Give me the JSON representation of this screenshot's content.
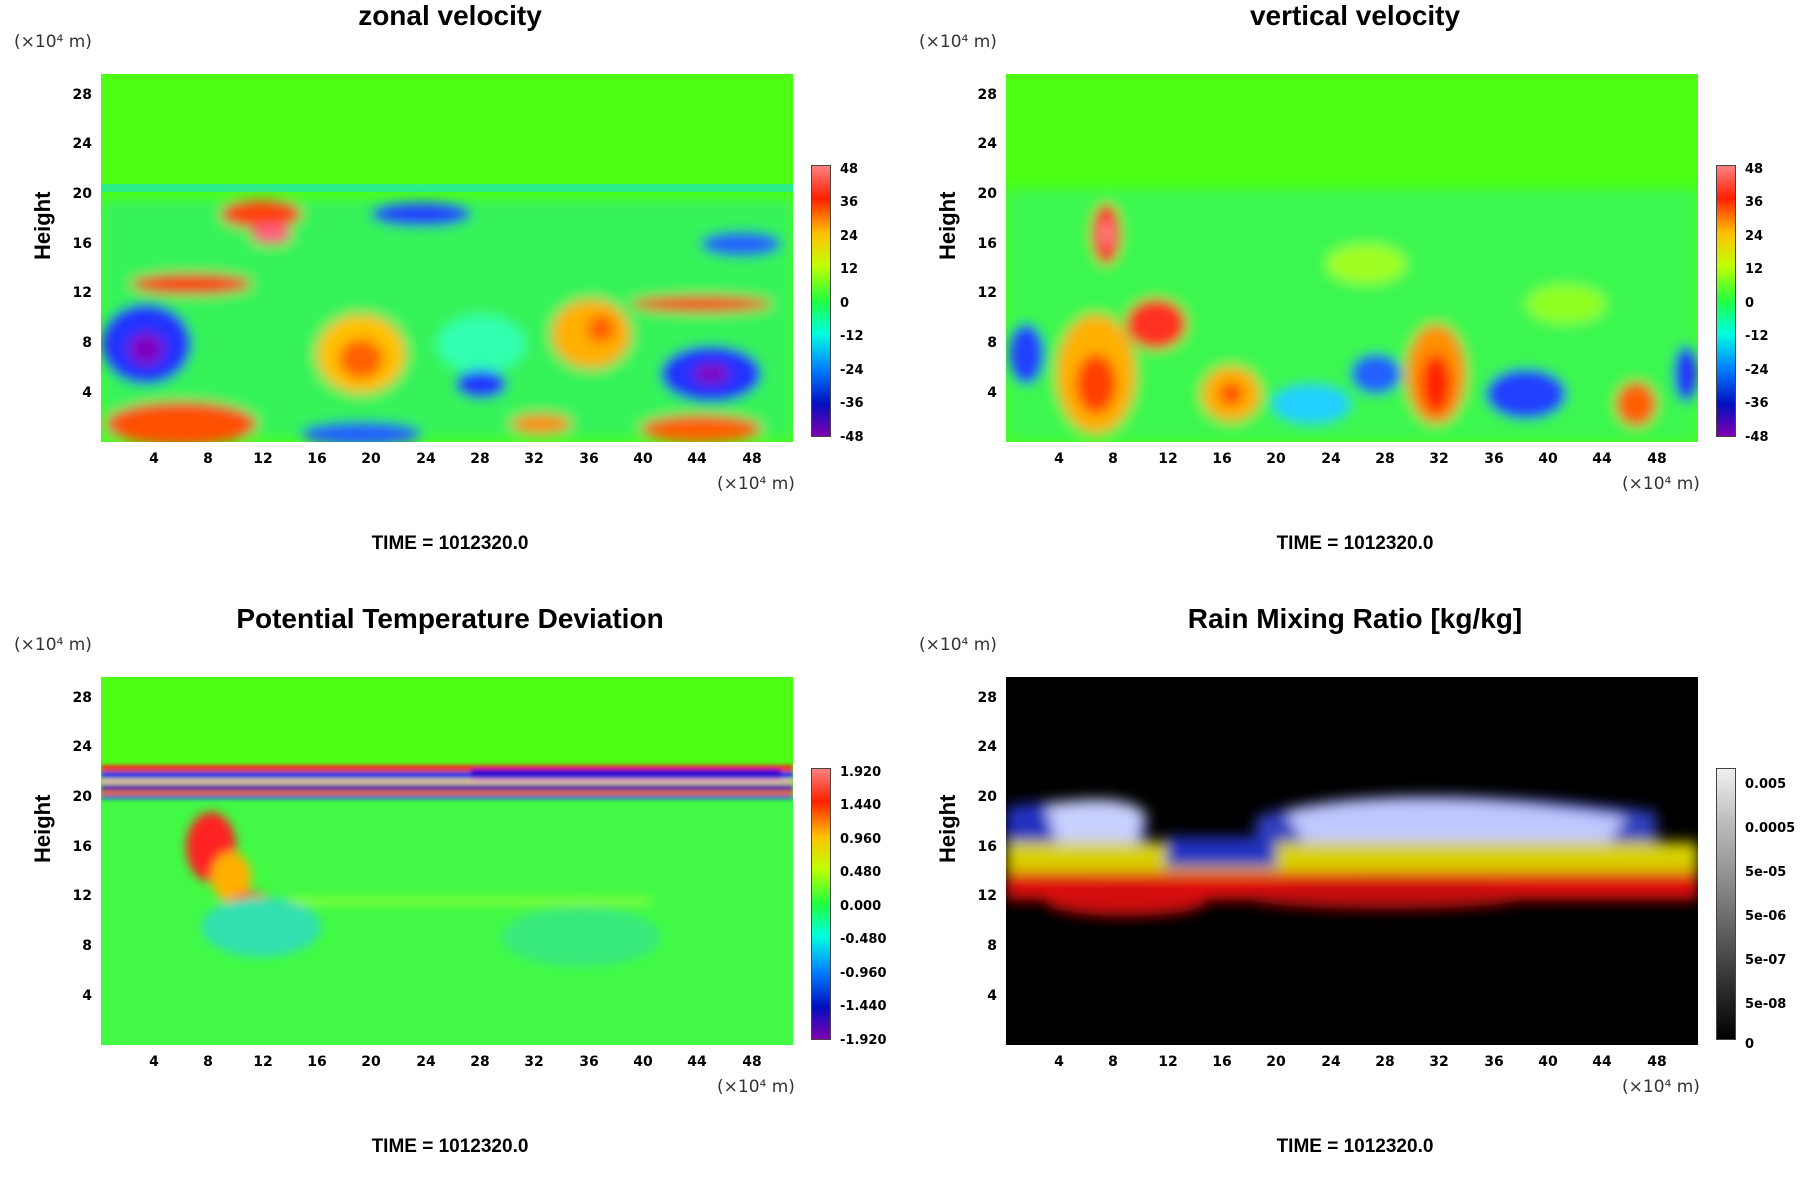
{
  "time_label": "TIME = 1012320.0",
  "unit_label": "(×10⁴ m)",
  "chart_data": [
    {
      "type": "heatmap",
      "title": "zonal velocity",
      "ylabel": "Height",
      "x_ticks": [
        "4",
        "8",
        "12",
        "16",
        "20",
        "24",
        "28",
        "32",
        "36",
        "40",
        "44",
        "48"
      ],
      "y_ticks": [
        "28",
        "24",
        "20",
        "16",
        "12",
        "8",
        "4"
      ],
      "colorbar_ticks": [
        "48",
        "36",
        "24",
        "12",
        "0",
        "-12",
        "-24",
        "-36",
        "-48"
      ],
      "colormap": "rainbow",
      "background": "#4cff14"
    },
    {
      "type": "heatmap",
      "title": "vertical velocity",
      "ylabel": "Height",
      "x_ticks": [
        "4",
        "8",
        "12",
        "16",
        "20",
        "24",
        "28",
        "32",
        "36",
        "40",
        "44",
        "48"
      ],
      "y_ticks": [
        "28",
        "24",
        "20",
        "16",
        "12",
        "8",
        "4"
      ],
      "colorbar_ticks": [
        "48",
        "36",
        "24",
        "12",
        "0",
        "-12",
        "-24",
        "-36",
        "-48"
      ],
      "colormap": "rainbow",
      "background": "#4cff14"
    },
    {
      "type": "heatmap",
      "title": "Potential Temperature Deviation",
      "ylabel": "Height",
      "x_ticks": [
        "4",
        "8",
        "12",
        "16",
        "20",
        "24",
        "28",
        "32",
        "36",
        "40",
        "44",
        "48"
      ],
      "y_ticks": [
        "28",
        "24",
        "20",
        "16",
        "12",
        "8",
        "4"
      ],
      "colorbar_ticks": [
        "1.920",
        "1.440",
        "0.960",
        "0.480",
        "0.000",
        "-0.480",
        "-0.960",
        "-1.440",
        "-1.920"
      ],
      "colormap": "rainbow",
      "background": "#4cff14"
    },
    {
      "type": "heatmap",
      "title": "Rain Mixing Ratio [kg/kg]",
      "ylabel": "Height",
      "x_ticks": [
        "4",
        "8",
        "12",
        "16",
        "20",
        "24",
        "28",
        "32",
        "36",
        "40",
        "44",
        "48"
      ],
      "y_ticks": [
        "28",
        "24",
        "20",
        "16",
        "12",
        "8",
        "4"
      ],
      "colorbar_ticks": [
        "0.005",
        "0.0005",
        "5e-05",
        "5e-06",
        "5e-07",
        "5e-08",
        "0"
      ],
      "colormap": "grayscale",
      "background": "#000000"
    }
  ]
}
